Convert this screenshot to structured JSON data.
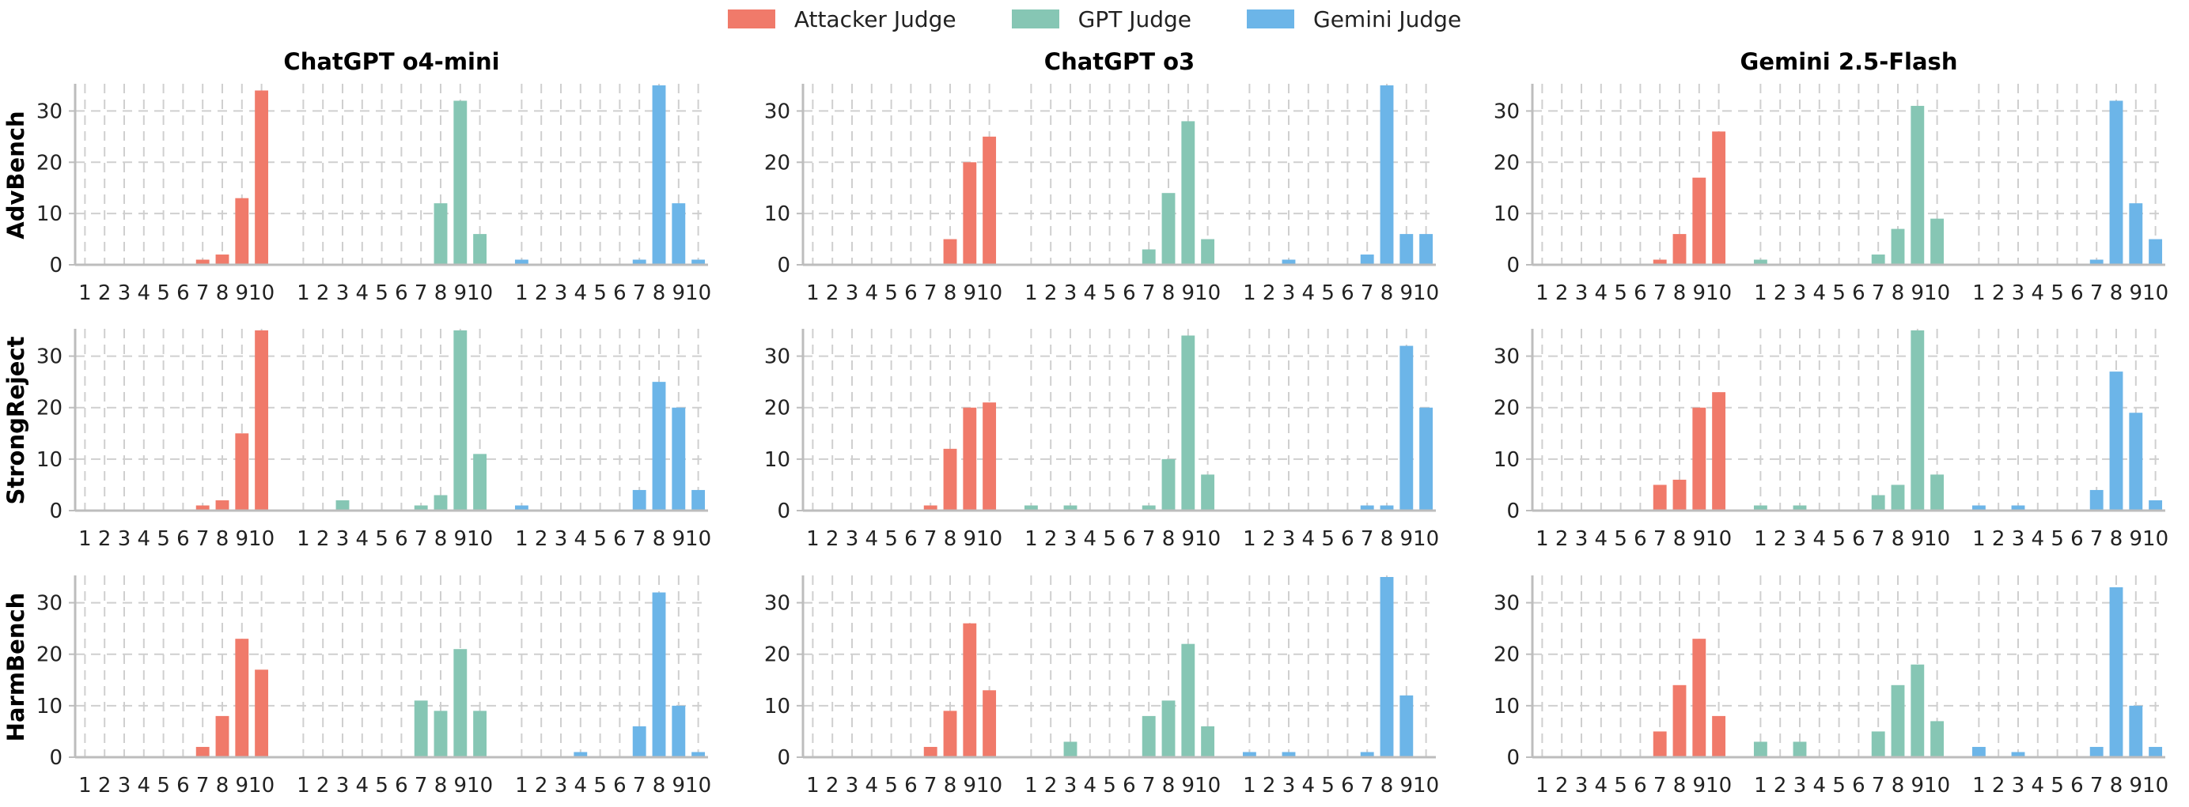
{
  "chart_data": {
    "type": "bar",
    "legend": [
      {
        "name": "Attacker Judge",
        "color": "#f07a6a"
      },
      {
        "name": "GPT Judge",
        "color": "#86c6b4"
      },
      {
        "name": "Gemini Judge",
        "color": "#6cb5e8"
      }
    ],
    "legend_position": "top-center",
    "grid": true,
    "ylim": [
      0,
      35
    ],
    "yticks": [
      0,
      10,
      20,
      30
    ],
    "categories": [
      "1",
      "2",
      "3",
      "4",
      "5",
      "6",
      "7",
      "8",
      "9",
      "10"
    ],
    "columns": [
      "ChatGPT o4-mini",
      "ChatGPT o3",
      "Gemini 2.5-Flash"
    ],
    "rows": [
      "AdvBench",
      "StrongReject",
      "HarmBench"
    ],
    "panels": [
      {
        "row": "AdvBench",
        "column": "ChatGPT o4-mini",
        "series": [
          {
            "name": "Attacker Judge",
            "values": [
              0,
              0,
              0,
              0,
              0,
              0,
              1,
              2,
              13,
              34
            ]
          },
          {
            "name": "GPT Judge",
            "values": [
              0,
              0,
              0,
              0,
              0,
              0,
              0,
              12,
              32,
              6
            ]
          },
          {
            "name": "Gemini Judge",
            "values": [
              1,
              0,
              0,
              0,
              0,
              0,
              1,
              35,
              12,
              1
            ]
          }
        ]
      },
      {
        "row": "AdvBench",
        "column": "ChatGPT o3",
        "series": [
          {
            "name": "Attacker Judge",
            "values": [
              0,
              0,
              0,
              0,
              0,
              0,
              0,
              5,
              20,
              25
            ]
          },
          {
            "name": "GPT Judge",
            "values": [
              0,
              0,
              0,
              0,
              0,
              0,
              3,
              14,
              28,
              5
            ]
          },
          {
            "name": "Gemini Judge",
            "values": [
              0,
              0,
              1,
              0,
              0,
              0,
              2,
              35,
              6,
              6
            ]
          }
        ]
      },
      {
        "row": "AdvBench",
        "column": "Gemini 2.5-Flash",
        "series": [
          {
            "name": "Attacker Judge",
            "values": [
              0,
              0,
              0,
              0,
              0,
              0,
              1,
              6,
              17,
              26
            ]
          },
          {
            "name": "GPT Judge",
            "values": [
              1,
              0,
              0,
              0,
              0,
              0,
              2,
              7,
              31,
              9
            ]
          },
          {
            "name": "Gemini Judge",
            "values": [
              0,
              0,
              0,
              0,
              0,
              0,
              1,
              32,
              12,
              5
            ]
          }
        ]
      },
      {
        "row": "StrongReject",
        "column": "ChatGPT o4-mini",
        "series": [
          {
            "name": "Attacker Judge",
            "values": [
              0,
              0,
              0,
              0,
              0,
              0,
              1,
              2,
              15,
              35
            ]
          },
          {
            "name": "GPT Judge",
            "values": [
              0,
              0,
              2,
              0,
              0,
              0,
              1,
              3,
              35,
              11
            ]
          },
          {
            "name": "Gemini Judge",
            "values": [
              1,
              0,
              0,
              0,
              0,
              0,
              4,
              25,
              20,
              4
            ]
          }
        ]
      },
      {
        "row": "StrongReject",
        "column": "ChatGPT o3",
        "series": [
          {
            "name": "Attacker Judge",
            "values": [
              0,
              0,
              0,
              0,
              0,
              0,
              1,
              12,
              20,
              21
            ]
          },
          {
            "name": "GPT Judge",
            "values": [
              1,
              0,
              1,
              0,
              0,
              0,
              1,
              10,
              34,
              7
            ]
          },
          {
            "name": "Gemini Judge",
            "values": [
              0,
              0,
              0,
              0,
              0,
              0,
              1,
              1,
              32,
              20
            ]
          }
        ]
      },
      {
        "row": "StrongReject",
        "column": "Gemini 2.5-Flash",
        "series": [
          {
            "name": "Attacker Judge",
            "values": [
              0,
              0,
              0,
              0,
              0,
              0,
              5,
              6,
              20,
              23
            ]
          },
          {
            "name": "GPT Judge",
            "values": [
              1,
              0,
              1,
              0,
              0,
              0,
              3,
              5,
              35,
              7
            ]
          },
          {
            "name": "Gemini Judge",
            "values": [
              1,
              0,
              1,
              0,
              0,
              0,
              4,
              27,
              19,
              2
            ]
          }
        ]
      },
      {
        "row": "HarmBench",
        "column": "ChatGPT o4-mini",
        "series": [
          {
            "name": "Attacker Judge",
            "values": [
              0,
              0,
              0,
              0,
              0,
              0,
              2,
              8,
              23,
              17
            ]
          },
          {
            "name": "GPT Judge",
            "values": [
              0,
              0,
              0,
              0,
              0,
              0,
              11,
              9,
              21,
              9
            ]
          },
          {
            "name": "Gemini Judge",
            "values": [
              0,
              0,
              0,
              1,
              0,
              0,
              6,
              32,
              10,
              1
            ]
          }
        ]
      },
      {
        "row": "HarmBench",
        "column": "ChatGPT o3",
        "series": [
          {
            "name": "Attacker Judge",
            "values": [
              0,
              0,
              0,
              0,
              0,
              0,
              2,
              9,
              26,
              13
            ]
          },
          {
            "name": "GPT Judge",
            "values": [
              0,
              0,
              3,
              0,
              0,
              0,
              8,
              11,
              22,
              6
            ]
          },
          {
            "name": "Gemini Judge",
            "values": [
              1,
              0,
              1,
              0,
              0,
              0,
              1,
              35,
              12,
              0
            ]
          }
        ]
      },
      {
        "row": "HarmBench",
        "column": "Gemini 2.5-Flash",
        "series": [
          {
            "name": "Attacker Judge",
            "values": [
              0,
              0,
              0,
              0,
              0,
              0,
              5,
              14,
              23,
              8
            ]
          },
          {
            "name": "GPT Judge",
            "values": [
              3,
              0,
              3,
              0,
              0,
              0,
              5,
              14,
              18,
              7
            ]
          },
          {
            "name": "Gemini Judge",
            "values": [
              2,
              0,
              1,
              0,
              0,
              0,
              2,
              33,
              10,
              2
            ]
          }
        ]
      }
    ]
  }
}
